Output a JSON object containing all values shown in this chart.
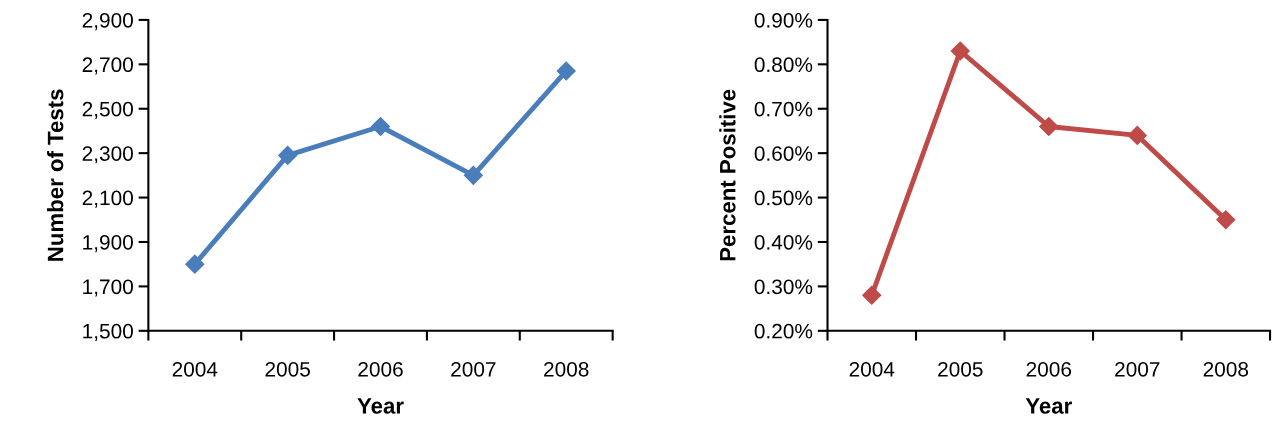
{
  "chart_data": [
    {
      "type": "line",
      "xlabel": "Year",
      "ylabel": "Number of Tests",
      "categories": [
        "2004",
        "2005",
        "2006",
        "2007",
        "2008"
      ],
      "series": [
        {
          "color": "#4a7ebb",
          "values": [
            1800,
            2290,
            2420,
            2200,
            2670
          ]
        }
      ],
      "marker": "diamond",
      "line_style": "solid",
      "grid": false,
      "ylim": [
        1500,
        2900
      ],
      "yticks": [
        {
          "value": 1500,
          "label": "1,500"
        },
        {
          "value": 1700,
          "label": "1,700"
        },
        {
          "value": 1900,
          "label": "1,900"
        },
        {
          "value": 2100,
          "label": "2,100"
        },
        {
          "value": 2300,
          "label": "2,300"
        },
        {
          "value": 2500,
          "label": "2,500"
        },
        {
          "value": 2700,
          "label": "2,700"
        },
        {
          "value": 2900,
          "label": "2,900"
        }
      ]
    },
    {
      "type": "line",
      "xlabel": "Year",
      "ylabel": "Percent Positive",
      "categories": [
        "2004",
        "2005",
        "2006",
        "2007",
        "2008"
      ],
      "series": [
        {
          "color": "#be4b48",
          "values": [
            0.28,
            0.83,
            0.66,
            0.64,
            0.45
          ]
        }
      ],
      "marker": "diamond",
      "line_style": "solid",
      "grid": false,
      "ylim": [
        0.2,
        0.9
      ],
      "yticks": [
        {
          "value": 0.2,
          "label": "0.20%"
        },
        {
          "value": 0.3,
          "label": "0.30%"
        },
        {
          "value": 0.4,
          "label": "0.40%"
        },
        {
          "value": 0.5,
          "label": "0.50%"
        },
        {
          "value": 0.6,
          "label": "0.60%"
        },
        {
          "value": 0.7,
          "label": "0.70%"
        },
        {
          "value": 0.8,
          "label": "0.80%"
        },
        {
          "value": 0.9,
          "label": "0.90%"
        }
      ]
    }
  ]
}
